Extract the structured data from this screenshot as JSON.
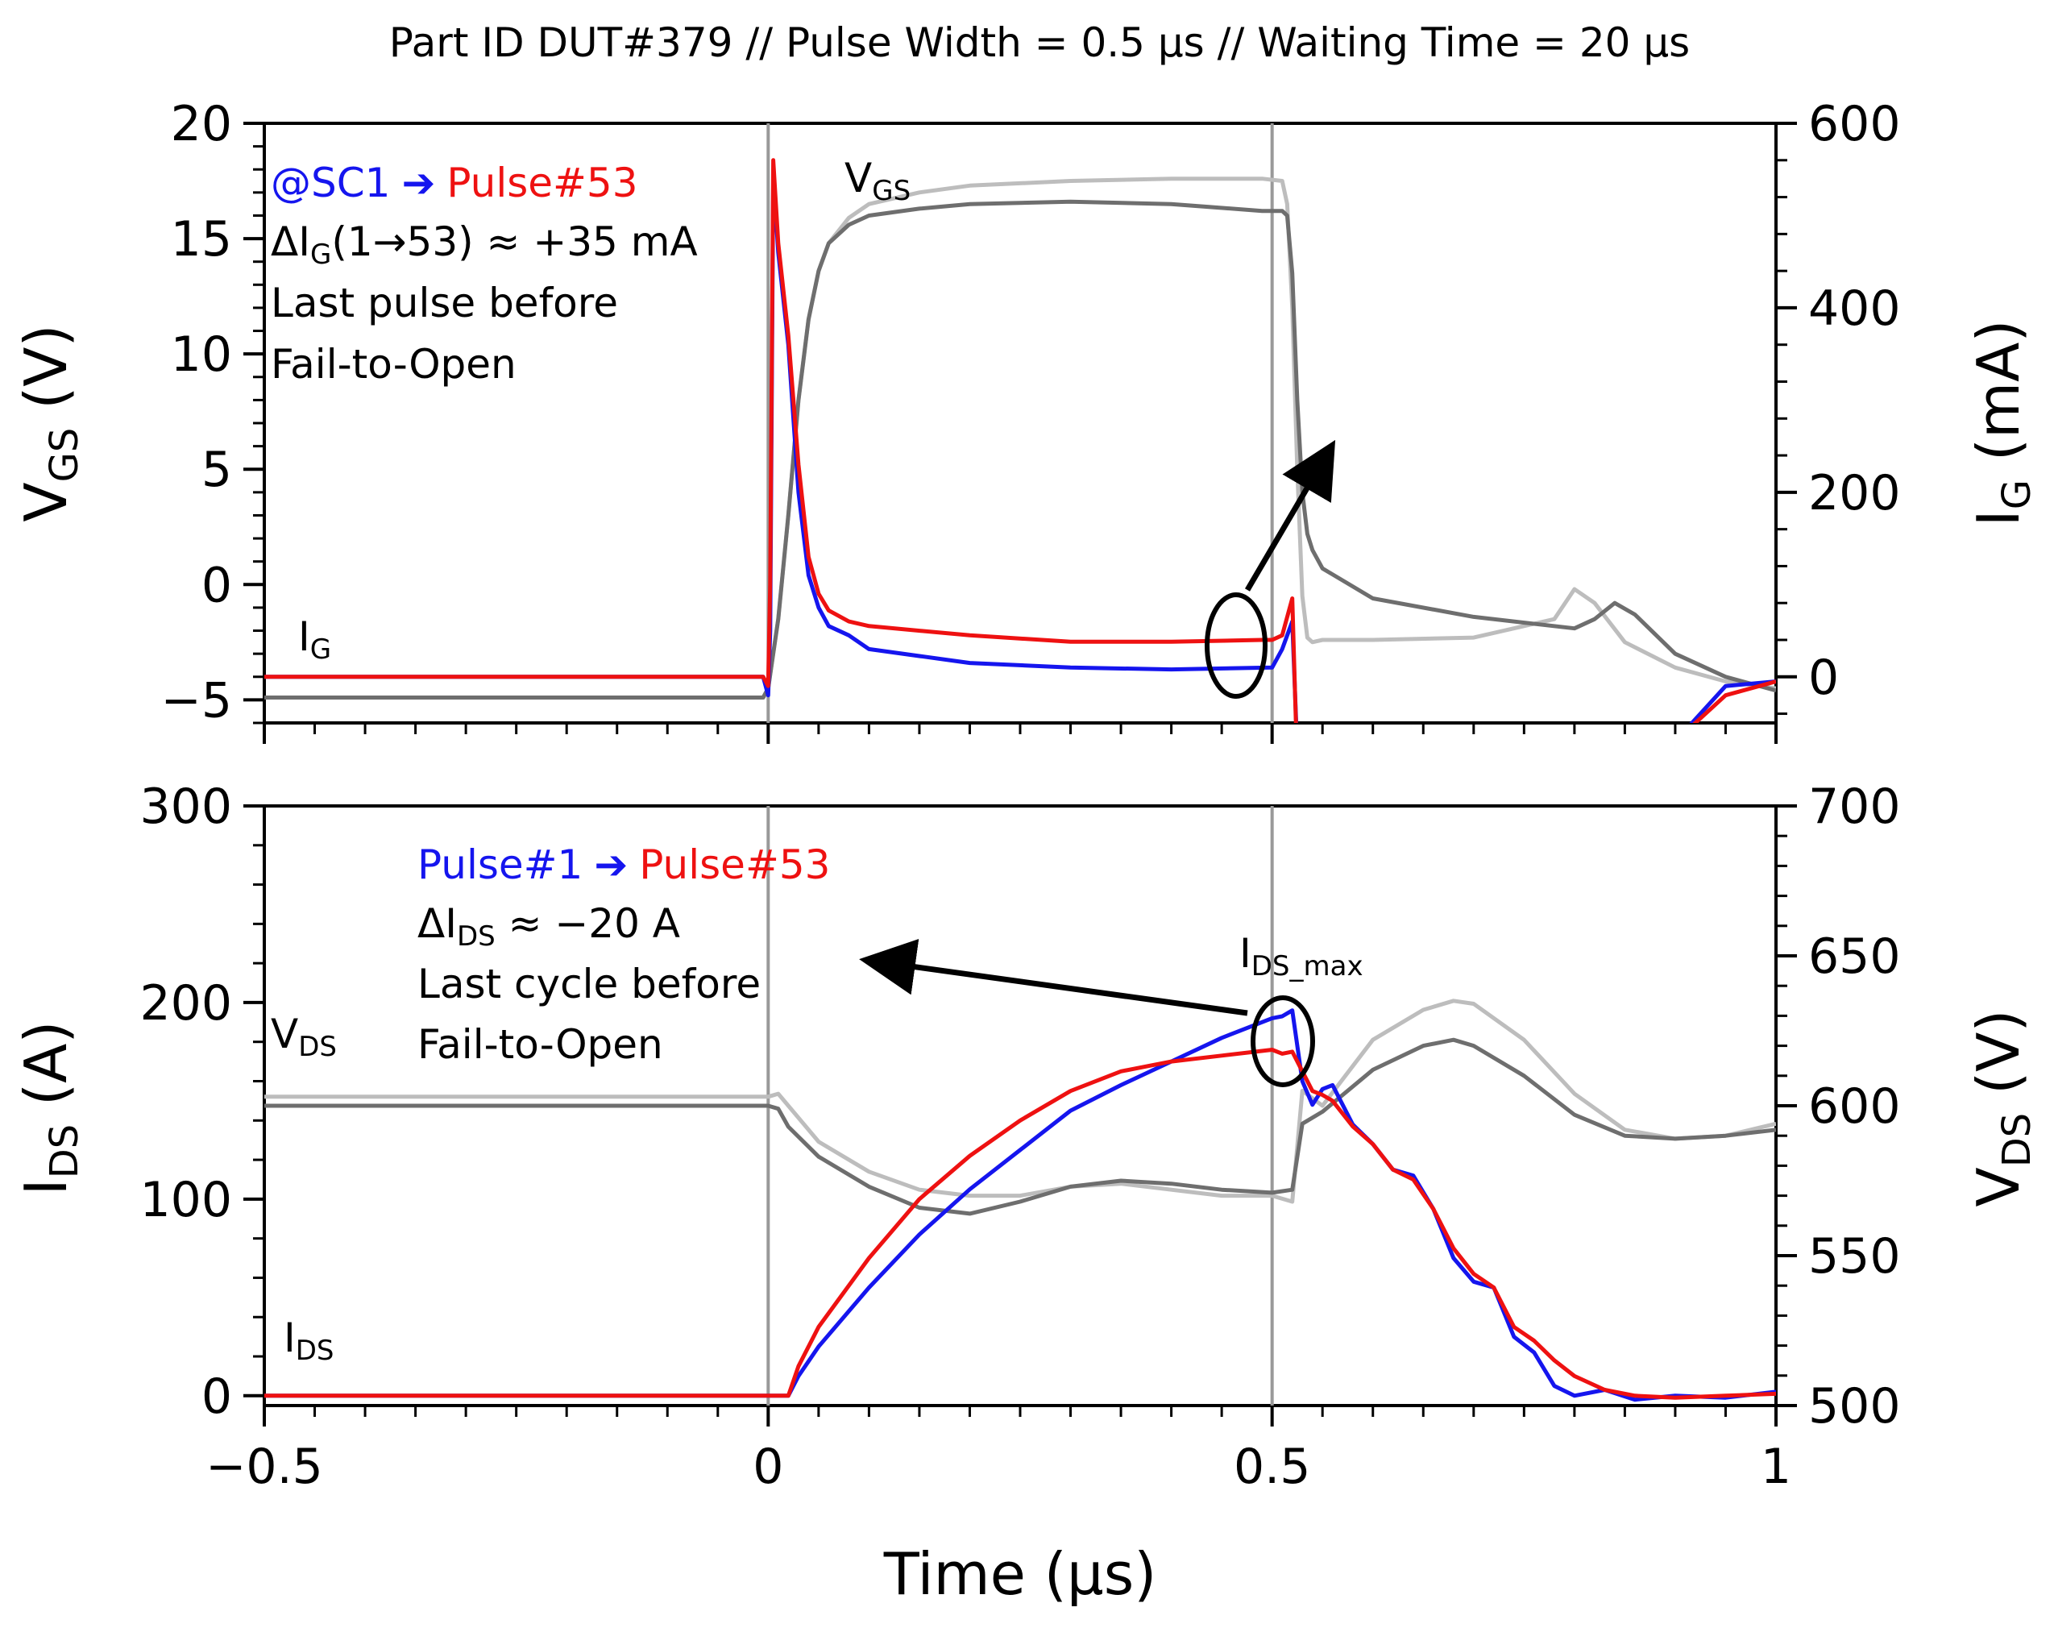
{
  "title": "Part ID DUT#379 // Pulse Width = 0.5 µs // Waiting Time = 20 µs",
  "colors": {
    "blue": "#1515ee",
    "red": "#ee1111",
    "dark_gray": "#6e6e6e",
    "light_gray": "#bdbdbd",
    "marker": "#999999"
  },
  "chart_data": [
    {
      "type": "line",
      "panel": "top",
      "x_label": "Time (µs)",
      "xlim": [
        -0.5,
        1
      ],
      "x_ticks": [
        "−0.5",
        "0",
        "0.5",
        "1"
      ],
      "left_axis": {
        "label": "V",
        "label_sub": "GS",
        "unit": " (V)",
        "ylim": [
          -6,
          20
        ],
        "ticks": [
          "−5",
          "0",
          "5",
          "10",
          "15",
          "20"
        ]
      },
      "right_axis": {
        "label": "I",
        "label_sub": "G",
        "unit": " (mA)",
        "ylim": [
          -50,
          600
        ],
        "ticks": [
          "0",
          "200",
          "400",
          "600"
        ]
      },
      "vertical_markers": [
        0,
        0.5
      ],
      "series": [
        {
          "name": "VGS @SC1",
          "axis": "left",
          "color": "light_gray",
          "x": [
            -0.5,
            -0.005,
            0,
            0.01,
            0.02,
            0.03,
            0.04,
            0.05,
            0.06,
            0.08,
            0.1,
            0.15,
            0.2,
            0.3,
            0.4,
            0.49,
            0.51,
            0.515,
            0.52,
            0.525,
            0.53,
            0.535,
            0.54,
            0.55,
            0.6,
            0.7,
            0.78,
            0.8,
            0.82,
            0.85,
            0.9,
            0.95,
            1.0
          ],
          "y": [
            -4.9,
            -4.9,
            -4.5,
            -1.5,
            3.0,
            8.0,
            11.5,
            13.6,
            14.8,
            15.9,
            16.5,
            17.0,
            17.3,
            17.5,
            17.6,
            17.6,
            17.5,
            16.5,
            12.0,
            5.0,
            -0.5,
            -2.3,
            -2.5,
            -2.4,
            -2.4,
            -2.3,
            -1.5,
            -0.2,
            -0.8,
            -2.5,
            -3.6,
            -4.2,
            -4.5
          ]
        },
        {
          "name": "VGS Pulse#53",
          "axis": "left",
          "color": "dark_gray",
          "x": [
            -0.5,
            -0.005,
            0,
            0.01,
            0.02,
            0.03,
            0.04,
            0.05,
            0.06,
            0.08,
            0.1,
            0.15,
            0.2,
            0.3,
            0.4,
            0.49,
            0.51,
            0.515,
            0.52,
            0.525,
            0.53,
            0.535,
            0.54,
            0.55,
            0.6,
            0.7,
            0.8,
            0.82,
            0.84,
            0.86,
            0.9,
            0.95,
            1.0
          ],
          "y": [
            -4.9,
            -4.9,
            -4.5,
            -1.5,
            3.0,
            8.0,
            11.5,
            13.6,
            14.8,
            15.6,
            16.0,
            16.3,
            16.5,
            16.6,
            16.5,
            16.2,
            16.2,
            16.0,
            13.5,
            8.0,
            4.0,
            2.2,
            1.5,
            0.7,
            -0.6,
            -1.4,
            -1.9,
            -1.5,
            -0.8,
            -1.3,
            -3.0,
            -4.0,
            -4.6
          ]
        },
        {
          "name": "IG @SC1",
          "axis": "right",
          "color": "blue",
          "x": [
            -0.5,
            -0.005,
            0,
            0.002,
            0.005,
            0.01,
            0.02,
            0.03,
            0.04,
            0.05,
            0.06,
            0.08,
            0.1,
            0.2,
            0.3,
            0.4,
            0.5,
            0.51,
            0.52,
            0.525,
            0.53,
            0.55,
            0.6,
            0.7,
            0.75,
            0.8,
            0.85,
            0.9,
            0.95,
            1.0
          ],
          "y": [
            0,
            0,
            -20,
            50,
            545,
            460,
            360,
            200,
            110,
            75,
            55,
            45,
            30,
            15,
            10,
            8,
            10,
            30,
            60,
            -80,
            -110,
            -100,
            -100,
            -95,
            -100,
            -110,
            -105,
            -70,
            -10,
            -5
          ]
        },
        {
          "name": "IG Pulse#53",
          "axis": "right",
          "color": "red",
          "x": [
            -0.5,
            -0.005,
            0,
            0.002,
            0.005,
            0.01,
            0.02,
            0.03,
            0.04,
            0.05,
            0.06,
            0.08,
            0.1,
            0.2,
            0.3,
            0.4,
            0.49,
            0.5,
            0.51,
            0.52,
            0.525,
            0.53,
            0.55,
            0.6,
            0.7,
            0.75,
            0.8,
            0.85,
            0.9,
            0.95,
            1.0
          ],
          "y": [
            0,
            0,
            -10,
            100,
            560,
            470,
            370,
            230,
            130,
            90,
            72,
            60,
            55,
            45,
            38,
            38,
            40,
            40,
            45,
            85,
            -100,
            -110,
            -100,
            -100,
            -95,
            -100,
            -110,
            -105,
            -70,
            -20,
            -5
          ]
        }
      ]
    },
    {
      "type": "line",
      "panel": "bottom",
      "x_label": "Time (µs)",
      "xlim": [
        -0.5,
        1
      ],
      "x_ticks": [
        "−0.5",
        "0",
        "0.5",
        "1"
      ],
      "left_axis": {
        "label": "I",
        "label_sub": "DS",
        "unit": " (A)",
        "ylim": [
          -5,
          300
        ],
        "ticks": [
          "0",
          "100",
          "200",
          "300"
        ]
      },
      "right_axis": {
        "label": "V",
        "label_sub": "DS",
        "unit": " (V)",
        "ylim": [
          500,
          700
        ],
        "ticks": [
          "500",
          "550",
          "600",
          "650",
          "700"
        ]
      },
      "vertical_markers": [
        0,
        0.5
      ],
      "series": [
        {
          "name": "VDS Pulse#1",
          "axis": "right",
          "color": "light_gray",
          "x": [
            -0.5,
            0,
            0.01,
            0.02,
            0.05,
            0.1,
            0.15,
            0.2,
            0.25,
            0.3,
            0.35,
            0.4,
            0.45,
            0.5,
            0.52,
            0.53,
            0.55,
            0.6,
            0.65,
            0.68,
            0.7,
            0.75,
            0.8,
            0.85,
            0.9,
            0.95,
            1.0
          ],
          "y": [
            603,
            603,
            604,
            600,
            588,
            578,
            572,
            570,
            570,
            573,
            574,
            572,
            570,
            570,
            568,
            605,
            600,
            622,
            632,
            635,
            634,
            622,
            604,
            592,
            589,
            590,
            594
          ]
        },
        {
          "name": "VDS Pulse#53",
          "axis": "right",
          "color": "dark_gray",
          "x": [
            -0.5,
            0,
            0.01,
            0.02,
            0.05,
            0.1,
            0.15,
            0.2,
            0.25,
            0.3,
            0.35,
            0.4,
            0.45,
            0.5,
            0.52,
            0.53,
            0.55,
            0.6,
            0.65,
            0.68,
            0.7,
            0.75,
            0.8,
            0.85,
            0.9,
            0.95,
            1.0
          ],
          "y": [
            600,
            600,
            599,
            593,
            583,
            573,
            566,
            564,
            568,
            573,
            575,
            574,
            572,
            571,
            572,
            594,
            598,
            612,
            620,
            622,
            620,
            610,
            597,
            590,
            589,
            590,
            592
          ]
        },
        {
          "name": "IDS Pulse#1",
          "axis": "left",
          "color": "blue",
          "x": [
            -0.5,
            0,
            0.02,
            0.03,
            0.05,
            0.1,
            0.15,
            0.2,
            0.25,
            0.3,
            0.35,
            0.4,
            0.45,
            0.5,
            0.51,
            0.52,
            0.53,
            0.54,
            0.55,
            0.56,
            0.58,
            0.6,
            0.62,
            0.64,
            0.66,
            0.68,
            0.7,
            0.72,
            0.74,
            0.76,
            0.78,
            0.8,
            0.83,
            0.86,
            0.9,
            0.95,
            1.0
          ],
          "y": [
            0,
            0,
            0,
            10,
            25,
            55,
            82,
            105,
            125,
            145,
            158,
            170,
            182,
            192,
            193,
            196,
            160,
            148,
            156,
            158,
            138,
            128,
            115,
            112,
            95,
            70,
            58,
            55,
            30,
            22,
            5,
            0,
            3,
            -2,
            0,
            -1,
            2
          ]
        },
        {
          "name": "IDS Pulse#53",
          "axis": "left",
          "color": "red",
          "x": [
            -0.5,
            0,
            0.02,
            0.03,
            0.05,
            0.1,
            0.15,
            0.2,
            0.25,
            0.3,
            0.35,
            0.4,
            0.45,
            0.5,
            0.51,
            0.52,
            0.53,
            0.54,
            0.55,
            0.56,
            0.58,
            0.6,
            0.62,
            0.64,
            0.66,
            0.68,
            0.7,
            0.72,
            0.74,
            0.76,
            0.78,
            0.8,
            0.83,
            0.86,
            0.9,
            0.95,
            1.0
          ],
          "y": [
            0,
            0,
            0,
            15,
            35,
            70,
            100,
            122,
            140,
            155,
            165,
            170,
            173,
            176,
            174,
            175,
            165,
            155,
            153,
            150,
            137,
            128,
            115,
            110,
            95,
            75,
            62,
            55,
            35,
            28,
            18,
            10,
            3,
            0,
            -1,
            0,
            1
          ]
        }
      ]
    }
  ],
  "annotations": {
    "top": {
      "legend_blue": "@SC1",
      "legend_arrow": "➔",
      "legend_red": "Pulse#53",
      "delta_main": "ΔI",
      "delta_sub": "G",
      "delta_rest": "(1→53) ≈ +35 mA",
      "line3": "Last pulse before",
      "line4": "Fail-to-Open",
      "vgs_main": "V",
      "vgs_sub": "GS",
      "ig_main": "I",
      "ig_sub": "G"
    },
    "bottom": {
      "legend_blue": "Pulse#1",
      "legend_arrow": "➔",
      "legend_red": "Pulse#53",
      "delta_main": "ΔI",
      "delta_sub": "DS",
      "delta_rest": " ≈ −20 A",
      "line3": "Last cycle before",
      "line4": "Fail-to-Open",
      "vds_main": "V",
      "vds_sub": "DS",
      "ids_main": "I",
      "ids_sub": "DS",
      "idsmax_main": "I",
      "idsmax_sub": "DS_max"
    }
  }
}
